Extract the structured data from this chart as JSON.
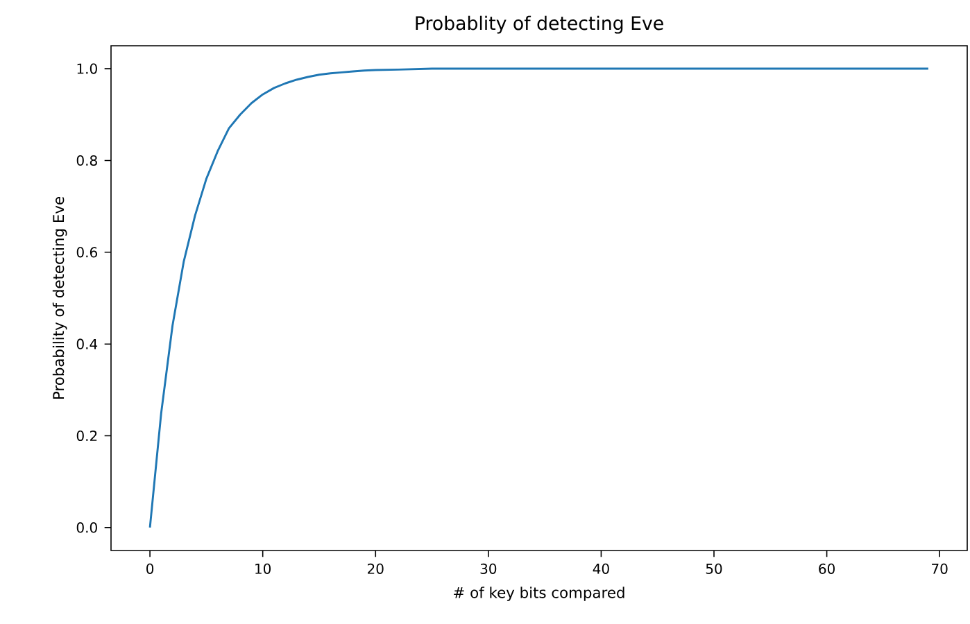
{
  "chart_data": {
    "type": "line",
    "title": "Probablity of detecting Eve",
    "xlabel": "# of key bits compared",
    "ylabel": "Probability of detecting Eve",
    "x": [
      0,
      1,
      2,
      3,
      4,
      5,
      6,
      7,
      8,
      9,
      10,
      11,
      12,
      13,
      14,
      15,
      16,
      17,
      18,
      19,
      20,
      22,
      25,
      30,
      40,
      50,
      60,
      69
    ],
    "series": [
      {
        "color": "#1f77b4",
        "values": [
          0,
          0.25,
          0.44,
          0.58,
          0.68,
          0.76,
          0.82,
          0.87,
          0.9,
          0.925,
          0.944,
          0.958,
          0.968,
          0.976,
          0.982,
          0.987,
          0.99,
          0.992,
          0.994,
          0.996,
          0.997,
          0.998,
          1.0,
          1.0,
          1.0,
          1.0,
          1.0,
          1.0
        ]
      }
    ],
    "xlim": [
      -3.45,
      72.45
    ],
    "ylim": [
      -0.05,
      1.05
    ],
    "xticks": [
      0,
      10,
      20,
      30,
      40,
      50,
      60,
      70
    ],
    "yticks": [
      {
        "value": 0,
        "label": "0.0"
      },
      {
        "value": 0.2,
        "label": "0.2"
      },
      {
        "value": 0.4,
        "label": "0.4"
      },
      {
        "value": 0.6,
        "label": "0.6"
      },
      {
        "value": 0.8,
        "label": "0.8"
      },
      {
        "value": 1,
        "label": "1.0"
      }
    ],
    "grid": false,
    "marker": "none",
    "line_style": "solid"
  }
}
